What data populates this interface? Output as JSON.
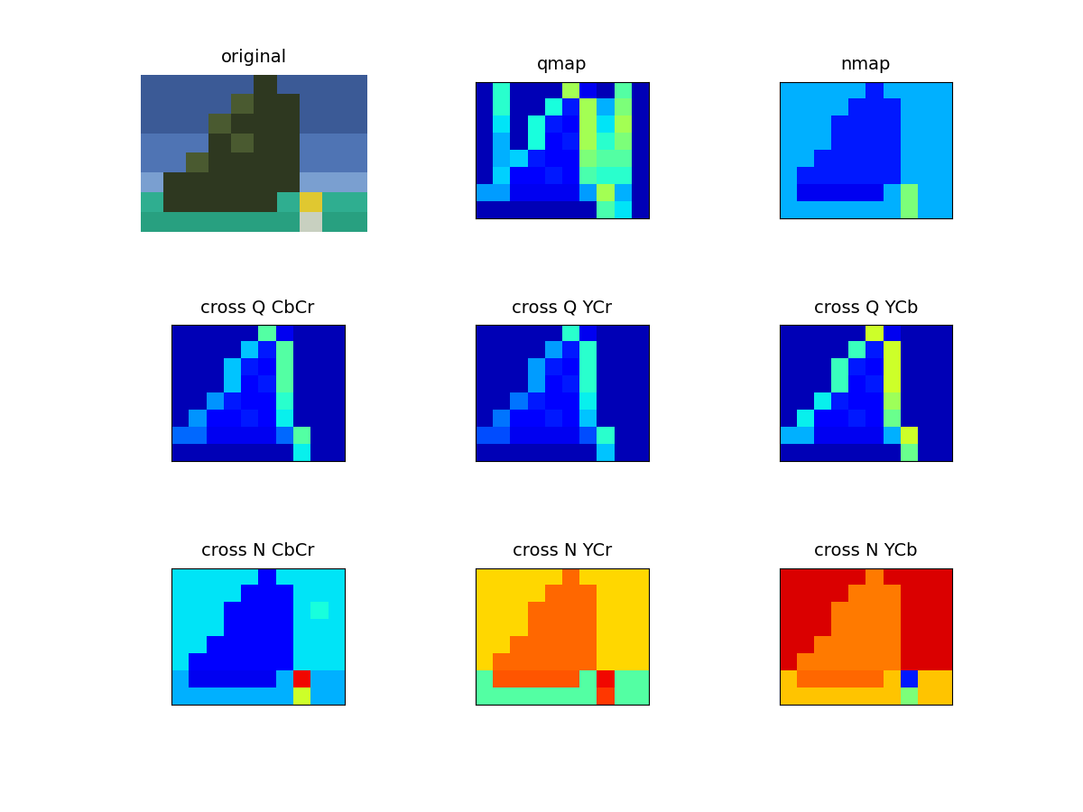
{
  "chart_data": [
    {
      "type": "image",
      "title": "original",
      "tick_labels": false,
      "colors": [
        [
          "#3b5a96",
          "#3b5a96",
          "#3b5a96",
          "#3b5a96",
          "#3b5a96",
          "#2e3820",
          "#3b5a96",
          "#3b5a96",
          "#3b5a96",
          "#3b5a96"
        ],
        [
          "#3b5a96",
          "#3b5a96",
          "#3b5a96",
          "#3b5a96",
          "#4a5a30",
          "#2e3820",
          "#2e3820",
          "#3b5a96",
          "#3b5a96",
          "#3b5a96"
        ],
        [
          "#3b5a96",
          "#3b5a96",
          "#3b5a96",
          "#4a5a30",
          "#2e3820",
          "#2e3820",
          "#2e3820",
          "#3b5a96",
          "#3b5a96",
          "#3b5a96"
        ],
        [
          "#4f74b4",
          "#4f74b4",
          "#4f74b4",
          "#2e3820",
          "#4a5a30",
          "#2e3820",
          "#2e3820",
          "#4f74b4",
          "#4f74b4",
          "#4f74b4"
        ],
        [
          "#4f74b4",
          "#4f74b4",
          "#4a5a30",
          "#2e3820",
          "#2e3820",
          "#2e3820",
          "#2e3820",
          "#4f74b4",
          "#4f74b4",
          "#4f74b4"
        ],
        [
          "#7a9fd0",
          "#2e3820",
          "#2e3820",
          "#2e3820",
          "#2e3820",
          "#2e3820",
          "#2e3820",
          "#7a9fd0",
          "#7a9fd0",
          "#7a9fd0"
        ],
        [
          "#2fae90",
          "#2e3820",
          "#2e3820",
          "#2e3820",
          "#2e3820",
          "#2e3820",
          "#2fae90",
          "#e0c830",
          "#2fae90",
          "#2fae90"
        ],
        [
          "#28a080",
          "#28a080",
          "#28a080",
          "#28a080",
          "#28a080",
          "#28a080",
          "#28a080",
          "#c8d0c0",
          "#28a080",
          "#28a080"
        ]
      ]
    },
    {
      "type": "heatmap",
      "title": "qmap",
      "tick_labels": false,
      "value_range": [
        0,
        1
      ],
      "cells": [
        [
          0.05,
          0.4,
          0.05,
          0.05,
          0.05,
          0.55,
          0.1,
          0.05,
          0.45,
          0.05
        ],
        [
          0.05,
          0.4,
          0.05,
          0.05,
          0.38,
          0.15,
          0.55,
          0.3,
          0.5,
          0.05
        ],
        [
          0.05,
          0.35,
          0.05,
          0.38,
          0.15,
          0.12,
          0.55,
          0.35,
          0.55,
          0.05
        ],
        [
          0.05,
          0.3,
          0.05,
          0.38,
          0.12,
          0.15,
          0.55,
          0.4,
          0.5,
          0.05
        ],
        [
          0.05,
          0.3,
          0.33,
          0.15,
          0.12,
          0.12,
          0.5,
          0.45,
          0.45,
          0.05
        ],
        [
          0.05,
          0.33,
          0.12,
          0.12,
          0.15,
          0.12,
          0.44,
          0.4,
          0.4,
          0.05
        ],
        [
          0.28,
          0.28,
          0.1,
          0.1,
          0.1,
          0.1,
          0.28,
          0.55,
          0.3,
          0.05
        ],
        [
          0.05,
          0.05,
          0.05,
          0.05,
          0.05,
          0.05,
          0.05,
          0.44,
          0.35,
          0.05
        ]
      ]
    },
    {
      "type": "heatmap",
      "title": "nmap",
      "tick_labels": false,
      "value_range": [
        0,
        1
      ],
      "cells": [
        [
          0.3,
          0.3,
          0.3,
          0.3,
          0.3,
          0.15,
          0.3,
          0.3,
          0.3,
          0.3
        ],
        [
          0.3,
          0.3,
          0.3,
          0.3,
          0.15,
          0.15,
          0.15,
          0.3,
          0.3,
          0.3
        ],
        [
          0.3,
          0.3,
          0.3,
          0.15,
          0.15,
          0.15,
          0.15,
          0.3,
          0.3,
          0.3
        ],
        [
          0.3,
          0.3,
          0.3,
          0.15,
          0.15,
          0.15,
          0.15,
          0.3,
          0.3,
          0.3
        ],
        [
          0.3,
          0.3,
          0.15,
          0.15,
          0.15,
          0.15,
          0.15,
          0.3,
          0.3,
          0.3
        ],
        [
          0.3,
          0.15,
          0.15,
          0.15,
          0.15,
          0.15,
          0.15,
          0.3,
          0.3,
          0.3
        ],
        [
          0.3,
          0.1,
          0.1,
          0.1,
          0.1,
          0.1,
          0.3,
          0.5,
          0.3,
          0.3
        ],
        [
          0.3,
          0.3,
          0.3,
          0.3,
          0.3,
          0.3,
          0.3,
          0.5,
          0.3,
          0.3
        ]
      ]
    },
    {
      "type": "heatmap",
      "title": "cross Q CbCr",
      "tick_labels": false,
      "value_range": [
        0,
        1
      ],
      "cells": [
        [
          0.05,
          0.05,
          0.05,
          0.05,
          0.05,
          0.45,
          0.1,
          0.05,
          0.05,
          0.05
        ],
        [
          0.05,
          0.05,
          0.05,
          0.05,
          0.32,
          0.15,
          0.45,
          0.05,
          0.05,
          0.05
        ],
        [
          0.05,
          0.05,
          0.05,
          0.32,
          0.15,
          0.12,
          0.45,
          0.05,
          0.05,
          0.05
        ],
        [
          0.05,
          0.05,
          0.05,
          0.32,
          0.12,
          0.15,
          0.45,
          0.05,
          0.05,
          0.05
        ],
        [
          0.05,
          0.05,
          0.27,
          0.15,
          0.12,
          0.12,
          0.4,
          0.05,
          0.05,
          0.05
        ],
        [
          0.05,
          0.27,
          0.12,
          0.12,
          0.15,
          0.12,
          0.36,
          0.05,
          0.05,
          0.05
        ],
        [
          0.23,
          0.23,
          0.1,
          0.1,
          0.1,
          0.1,
          0.23,
          0.45,
          0.05,
          0.05
        ],
        [
          0.05,
          0.05,
          0.05,
          0.05,
          0.05,
          0.05,
          0.05,
          0.36,
          0.05,
          0.05
        ]
      ]
    },
    {
      "type": "heatmap",
      "title": "cross Q YCr",
      "tick_labels": false,
      "value_range": [
        0,
        1
      ],
      "cells": [
        [
          0.05,
          0.05,
          0.05,
          0.05,
          0.05,
          0.4,
          0.1,
          0.05,
          0.05,
          0.05
        ],
        [
          0.05,
          0.05,
          0.05,
          0.05,
          0.28,
          0.15,
          0.4,
          0.05,
          0.05,
          0.05
        ],
        [
          0.05,
          0.05,
          0.05,
          0.28,
          0.15,
          0.12,
          0.4,
          0.05,
          0.05,
          0.05
        ],
        [
          0.05,
          0.05,
          0.05,
          0.28,
          0.12,
          0.15,
          0.4,
          0.05,
          0.05,
          0.05
        ],
        [
          0.05,
          0.05,
          0.24,
          0.15,
          0.12,
          0.12,
          0.36,
          0.05,
          0.05,
          0.05
        ],
        [
          0.05,
          0.24,
          0.12,
          0.12,
          0.15,
          0.12,
          0.32,
          0.05,
          0.05,
          0.05
        ],
        [
          0.2,
          0.2,
          0.1,
          0.1,
          0.1,
          0.1,
          0.2,
          0.4,
          0.05,
          0.05
        ],
        [
          0.05,
          0.05,
          0.05,
          0.05,
          0.05,
          0.05,
          0.05,
          0.32,
          0.05,
          0.05
        ]
      ]
    },
    {
      "type": "heatmap",
      "title": "cross Q YCb",
      "tick_labels": false,
      "value_range": [
        0,
        1
      ],
      "cells": [
        [
          0.05,
          0.05,
          0.05,
          0.05,
          0.05,
          0.6,
          0.1,
          0.05,
          0.05,
          0.05
        ],
        [
          0.05,
          0.05,
          0.05,
          0.05,
          0.42,
          0.15,
          0.6,
          0.05,
          0.05,
          0.05
        ],
        [
          0.05,
          0.05,
          0.05,
          0.42,
          0.15,
          0.12,
          0.6,
          0.05,
          0.05,
          0.05
        ],
        [
          0.05,
          0.05,
          0.05,
          0.42,
          0.12,
          0.15,
          0.6,
          0.05,
          0.05,
          0.05
        ],
        [
          0.05,
          0.05,
          0.36,
          0.15,
          0.12,
          0.12,
          0.54,
          0.05,
          0.05,
          0.05
        ],
        [
          0.05,
          0.36,
          0.12,
          0.12,
          0.15,
          0.12,
          0.48,
          0.05,
          0.05,
          0.05
        ],
        [
          0.3,
          0.3,
          0.1,
          0.1,
          0.1,
          0.1,
          0.3,
          0.6,
          0.05,
          0.05
        ],
        [
          0.05,
          0.05,
          0.05,
          0.05,
          0.05,
          0.05,
          0.05,
          0.48,
          0.05,
          0.05
        ]
      ]
    },
    {
      "type": "heatmap",
      "title": "cross N CbCr",
      "tick_labels": false,
      "value_range": [
        0,
        1
      ],
      "cells": [
        [
          0.35,
          0.35,
          0.35,
          0.35,
          0.35,
          0.12,
          0.35,
          0.35,
          0.35,
          0.35
        ],
        [
          0.35,
          0.35,
          0.35,
          0.35,
          0.12,
          0.12,
          0.12,
          0.35,
          0.35,
          0.35
        ],
        [
          0.35,
          0.35,
          0.35,
          0.12,
          0.12,
          0.12,
          0.12,
          0.35,
          0.38,
          0.35
        ],
        [
          0.35,
          0.35,
          0.35,
          0.12,
          0.12,
          0.12,
          0.12,
          0.35,
          0.35,
          0.35
        ],
        [
          0.35,
          0.35,
          0.12,
          0.12,
          0.12,
          0.12,
          0.12,
          0.35,
          0.35,
          0.35
        ],
        [
          0.35,
          0.12,
          0.12,
          0.12,
          0.12,
          0.12,
          0.12,
          0.35,
          0.35,
          0.35
        ],
        [
          0.3,
          0.1,
          0.1,
          0.1,
          0.1,
          0.1,
          0.3,
          0.9,
          0.3,
          0.3
        ],
        [
          0.3,
          0.3,
          0.3,
          0.3,
          0.3,
          0.3,
          0.3,
          0.6,
          0.3,
          0.3
        ]
      ]
    },
    {
      "type": "heatmap",
      "title": "cross N YCr",
      "tick_labels": false,
      "value_range": [
        0,
        1
      ],
      "cells": [
        [
          0.68,
          0.68,
          0.68,
          0.68,
          0.68,
          0.8,
          0.68,
          0.68,
          0.68,
          0.68
        ],
        [
          0.68,
          0.68,
          0.68,
          0.68,
          0.8,
          0.8,
          0.8,
          0.68,
          0.68,
          0.68
        ],
        [
          0.68,
          0.68,
          0.68,
          0.8,
          0.8,
          0.8,
          0.8,
          0.68,
          0.68,
          0.68
        ],
        [
          0.68,
          0.68,
          0.68,
          0.8,
          0.8,
          0.8,
          0.8,
          0.68,
          0.68,
          0.68
        ],
        [
          0.68,
          0.68,
          0.8,
          0.8,
          0.8,
          0.8,
          0.8,
          0.68,
          0.68,
          0.68
        ],
        [
          0.68,
          0.8,
          0.8,
          0.8,
          0.8,
          0.8,
          0.8,
          0.68,
          0.68,
          0.68
        ],
        [
          0.45,
          0.82,
          0.82,
          0.82,
          0.82,
          0.82,
          0.45,
          0.9,
          0.45,
          0.45
        ],
        [
          0.45,
          0.45,
          0.45,
          0.45,
          0.45,
          0.45,
          0.45,
          0.85,
          0.45,
          0.45
        ]
      ]
    },
    {
      "type": "heatmap",
      "title": "cross N YCb",
      "tick_labels": false,
      "value_range": [
        0,
        1
      ],
      "cells": [
        [
          0.92,
          0.92,
          0.92,
          0.92,
          0.92,
          0.78,
          0.92,
          0.92,
          0.92,
          0.92
        ],
        [
          0.92,
          0.92,
          0.92,
          0.92,
          0.78,
          0.78,
          0.78,
          0.92,
          0.92,
          0.92
        ],
        [
          0.92,
          0.92,
          0.92,
          0.78,
          0.78,
          0.78,
          0.78,
          0.92,
          0.92,
          0.92
        ],
        [
          0.92,
          0.92,
          0.92,
          0.78,
          0.78,
          0.78,
          0.78,
          0.92,
          0.92,
          0.92
        ],
        [
          0.92,
          0.92,
          0.78,
          0.78,
          0.78,
          0.78,
          0.78,
          0.92,
          0.92,
          0.92
        ],
        [
          0.92,
          0.78,
          0.78,
          0.78,
          0.78,
          0.78,
          0.78,
          0.92,
          0.92,
          0.92
        ],
        [
          0.7,
          0.8,
          0.8,
          0.8,
          0.8,
          0.8,
          0.7,
          0.15,
          0.7,
          0.7
        ],
        [
          0.7,
          0.7,
          0.7,
          0.7,
          0.7,
          0.7,
          0.7,
          0.5,
          0.7,
          0.7
        ]
      ]
    }
  ]
}
